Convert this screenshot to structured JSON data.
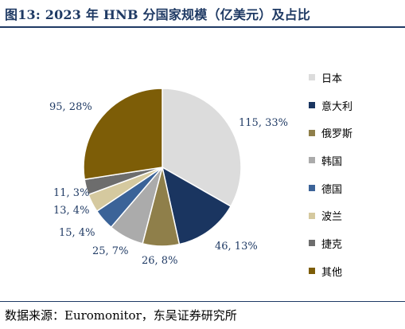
{
  "title": "图13:  2023 年 HNB 分国家规模（亿美元）及占比",
  "source": "数据来源：Euromonitor，东吴证券研究所",
  "chart_data": {
    "type": "pie",
    "categories": [
      "日本",
      "意大利",
      "俄罗斯",
      "韩国",
      "德国",
      "波兰",
      "捷克",
      "其他"
    ],
    "values": [
      115,
      46,
      26,
      25,
      15,
      13,
      11,
      95
    ],
    "data_labels": [
      "115, 33%",
      "46, 13%",
      "26, 8%",
      "25, 7%",
      "15, 4%",
      "13, 4%",
      "11, 3%",
      "95, 28%"
    ],
    "colors": [
      "#dcdcdc",
      "#1a3560",
      "#8f7f4a",
      "#ababab",
      "#3b6398",
      "#d5c99f",
      "#6d6d6d",
      "#7d5d07"
    ],
    "legend_position": "right"
  }
}
